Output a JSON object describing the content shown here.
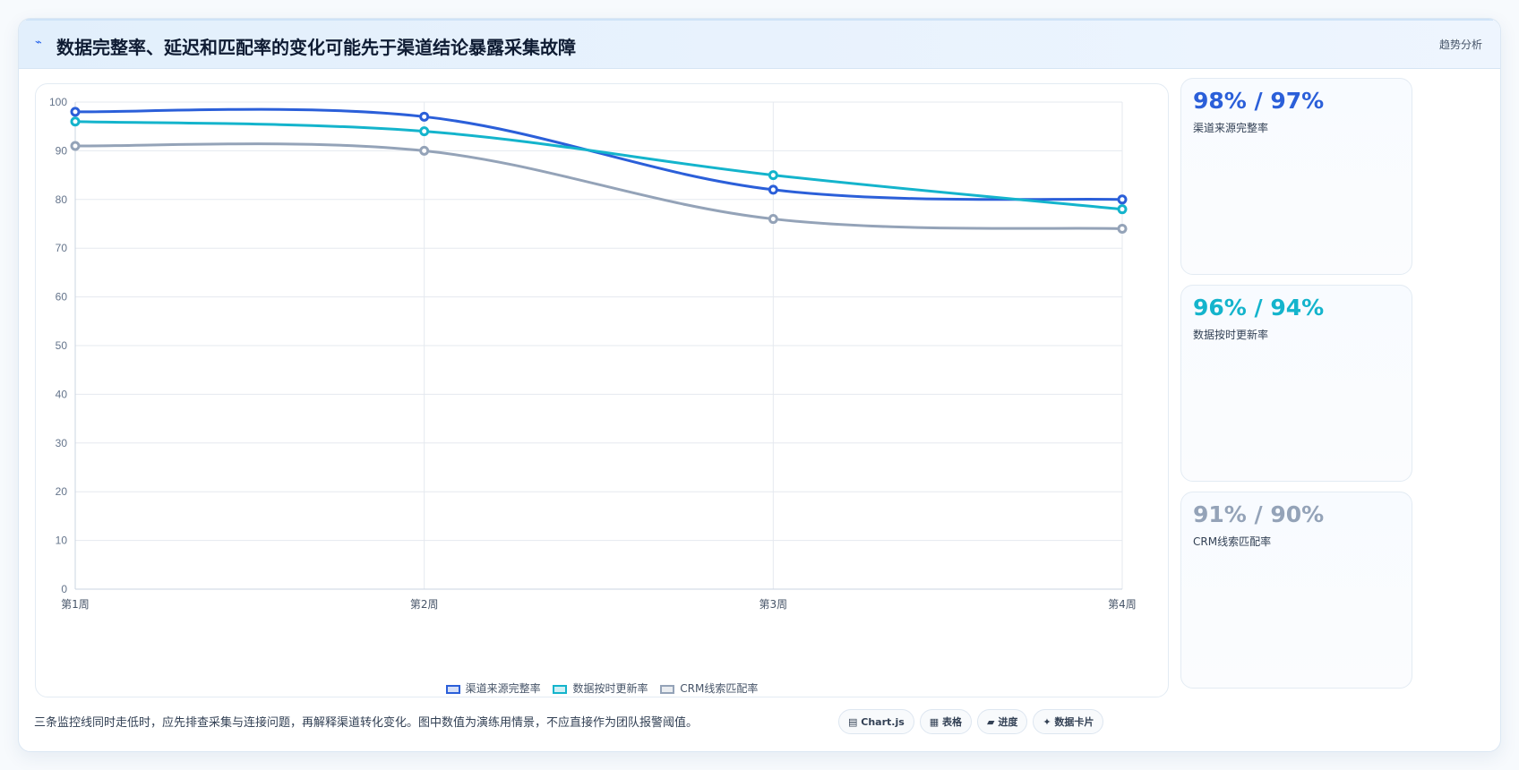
{
  "header": {
    "icon": "trend-icon",
    "title": "数据完整率、延迟和匹配率的变化可能先于渠道结论暴露采集故障",
    "tag": "趋势分析"
  },
  "chart_data": {
    "type": "line",
    "categories": [
      "第1周",
      "第2周",
      "第3周",
      "第4周"
    ],
    "series": [
      {
        "name": "渠道来源完整率",
        "values": [
          98,
          97,
          82,
          80
        ],
        "color": "#2b5fd9"
      },
      {
        "name": "数据按时更新率",
        "values": [
          96,
          94,
          85,
          78
        ],
        "color": "#14b4cc"
      },
      {
        "name": "CRM线索匹配率",
        "values": [
          91,
          90,
          76,
          74
        ],
        "color": "#94a3b8"
      }
    ],
    "ylim": [
      0,
      100
    ],
    "yticks": [
      0,
      10,
      20,
      30,
      40,
      50,
      60,
      70,
      80,
      90,
      100
    ],
    "grid": true,
    "legend": "bottom"
  },
  "side_cards": [
    {
      "value": "98% / 97%",
      "label": "渠道来源完整率",
      "color": "#2b5fd9"
    },
    {
      "value": "96% / 94%",
      "label": "数据按时更新率",
      "color": "#14b4cc"
    },
    {
      "value": "91% / 90%",
      "label": "CRM线索匹配率",
      "color": "#94a3b8"
    }
  ],
  "footnote": "三条监控线同时走低时，应先排查采集与连接问题，再解释渠道转化变化。图中数值为演练用情景，不应直接作为团队报警阈值。",
  "view_buttons": [
    {
      "icon": "chart-icon",
      "glyph": "▤",
      "label": "Chart.js"
    },
    {
      "icon": "table-icon",
      "glyph": "▦",
      "label": "表格"
    },
    {
      "icon": "progress-icon",
      "glyph": "▰",
      "label": "进度"
    },
    {
      "icon": "card-icon",
      "glyph": "✦",
      "label": "数据卡片"
    }
  ]
}
